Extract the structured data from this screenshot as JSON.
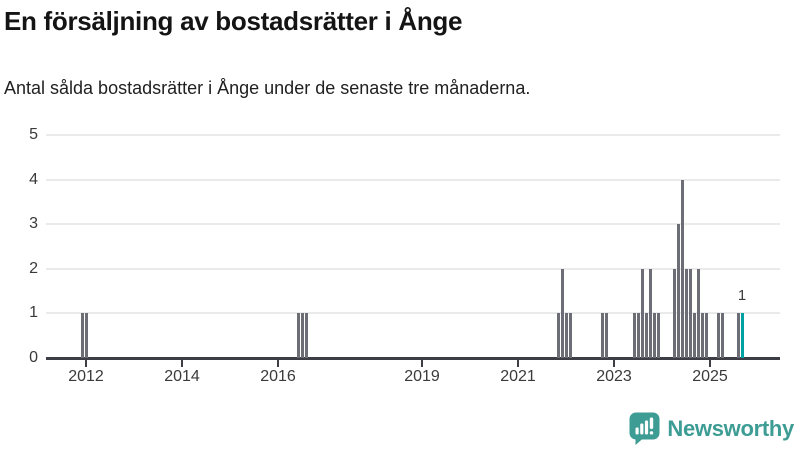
{
  "header": {
    "title": "En försäljning av bostadsrätter i Ånge",
    "subtitle": "Antal sålda bostadsrätter i Ånge under de senaste tre månaderna."
  },
  "chart_data": {
    "type": "bar",
    "title": "En försäljning av bostadsrätter i Ånge",
    "xlabel": "",
    "ylabel": "",
    "ylim": [
      0,
      5
    ],
    "yticks": [
      0,
      1,
      2,
      3,
      4,
      5
    ],
    "xticks": [
      "2012",
      "2014",
      "2016",
      "2019",
      "2021",
      "2023",
      "2025"
    ],
    "grid": true,
    "legend": "none",
    "time_unit": "month",
    "series": [
      {
        "name": "Antal sålda bostadsrätter (senaste tre månaderna)",
        "points": [
          {
            "month": "2011-12",
            "value": 1
          },
          {
            "month": "2012-01",
            "value": 1
          },
          {
            "month": "2016-06",
            "value": 1
          },
          {
            "month": "2016-07",
            "value": 1
          },
          {
            "month": "2016-08",
            "value": 1
          },
          {
            "month": "2021-11",
            "value": 1
          },
          {
            "month": "2021-12",
            "value": 2
          },
          {
            "month": "2022-01",
            "value": 1
          },
          {
            "month": "2022-02",
            "value": 1
          },
          {
            "month": "2022-10",
            "value": 1
          },
          {
            "month": "2022-11",
            "value": 1
          },
          {
            "month": "2023-06",
            "value": 1
          },
          {
            "month": "2023-07",
            "value": 1
          },
          {
            "month": "2023-08",
            "value": 2
          },
          {
            "month": "2023-09",
            "value": 1
          },
          {
            "month": "2023-10",
            "value": 2
          },
          {
            "month": "2023-11",
            "value": 1
          },
          {
            "month": "2023-12",
            "value": 1
          },
          {
            "month": "2024-04",
            "value": 2
          },
          {
            "month": "2024-05",
            "value": 3
          },
          {
            "month": "2024-06",
            "value": 4
          },
          {
            "month": "2024-07",
            "value": 2
          },
          {
            "month": "2024-08",
            "value": 2
          },
          {
            "month": "2024-09",
            "value": 1
          },
          {
            "month": "2024-10",
            "value": 2
          },
          {
            "month": "2024-11",
            "value": 1
          },
          {
            "month": "2024-12",
            "value": 1
          },
          {
            "month": "2025-03",
            "value": 1
          },
          {
            "month": "2025-04",
            "value": 1
          },
          {
            "month": "2025-08",
            "value": 1
          },
          {
            "month": "2025-09",
            "value": 1,
            "highlight": true,
            "label": "1"
          }
        ]
      }
    ]
  },
  "colors": {
    "bar": "#6d6d76",
    "highlight": "#00a1a2",
    "brand": "#3d9c94",
    "grid": "#eaeaea",
    "axis": "#3d3d46",
    "text": "#3a3a3a",
    "title_text": "#141414",
    "subtitle_text": "#212121"
  },
  "footer": {
    "brand": "Newsworthy",
    "logo_icon": "bar-chart-speech-bubble-icon"
  }
}
